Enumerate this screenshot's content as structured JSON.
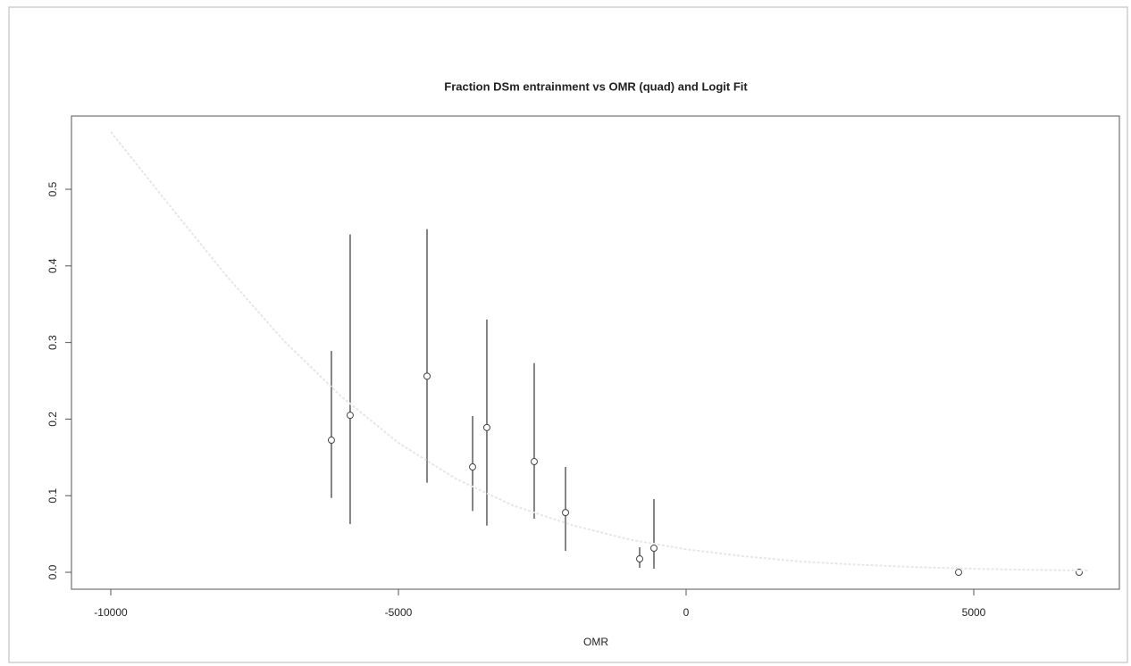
{
  "chart_data": {
    "type": "scatter",
    "title": "Fraction DSm entrainment vs OMR (quad) and Logit Fit",
    "xlabel": "OMR",
    "xlim": [
      -10683,
      7531
    ],
    "ylim": [
      -0.0221,
      0.5956
    ],
    "xticks": [
      -10000,
      -5000,
      0,
      5000
    ],
    "yticks": [
      {
        "value": 0,
        "label": "0.0"
      },
      0.1,
      0.2,
      0.3,
      0.4,
      0.5
    ],
    "series": [
      {
        "type": "scatter",
        "color": "#444444",
        "x": [
          -6165,
          -5839,
          -4503,
          -3711,
          -3463,
          -2640,
          -2096,
          -807,
          -559,
          4736,
          6832
        ],
        "values": [
          0.1725,
          0.205,
          0.256,
          0.1375,
          0.189,
          0.1445,
          0.078,
          0.0175,
          0.0315,
          0,
          0
        ],
        "lower": [
          0.097,
          0.063,
          0.117,
          0.08,
          0.061,
          0.07,
          0.028,
          0.0058,
          0.0047,
          null,
          null
        ],
        "upper": [
          0.289,
          0.441,
          0.448,
          0.204,
          0.33,
          0.273,
          0.1375,
          0.0326,
          0.0956,
          null,
          null
        ]
      },
      {
        "type": "line",
        "color": "#e6e6e6",
        "x": [
          -10000,
          -9000,
          -8000,
          -7000,
          -6000,
          -5000,
          -4000,
          -3000,
          -2000,
          -1000,
          0,
          1000,
          2000,
          3000,
          4000,
          5000,
          6000,
          7000
        ],
        "values": [
          0.575,
          0.481,
          0.388,
          0.303,
          0.23,
          0.169,
          0.122,
          0.087,
          0.062,
          0.043,
          0.03,
          0.021,
          0.014,
          0.0098,
          0.0068,
          0.0046,
          0.0032,
          0.0022
        ]
      }
    ]
  }
}
